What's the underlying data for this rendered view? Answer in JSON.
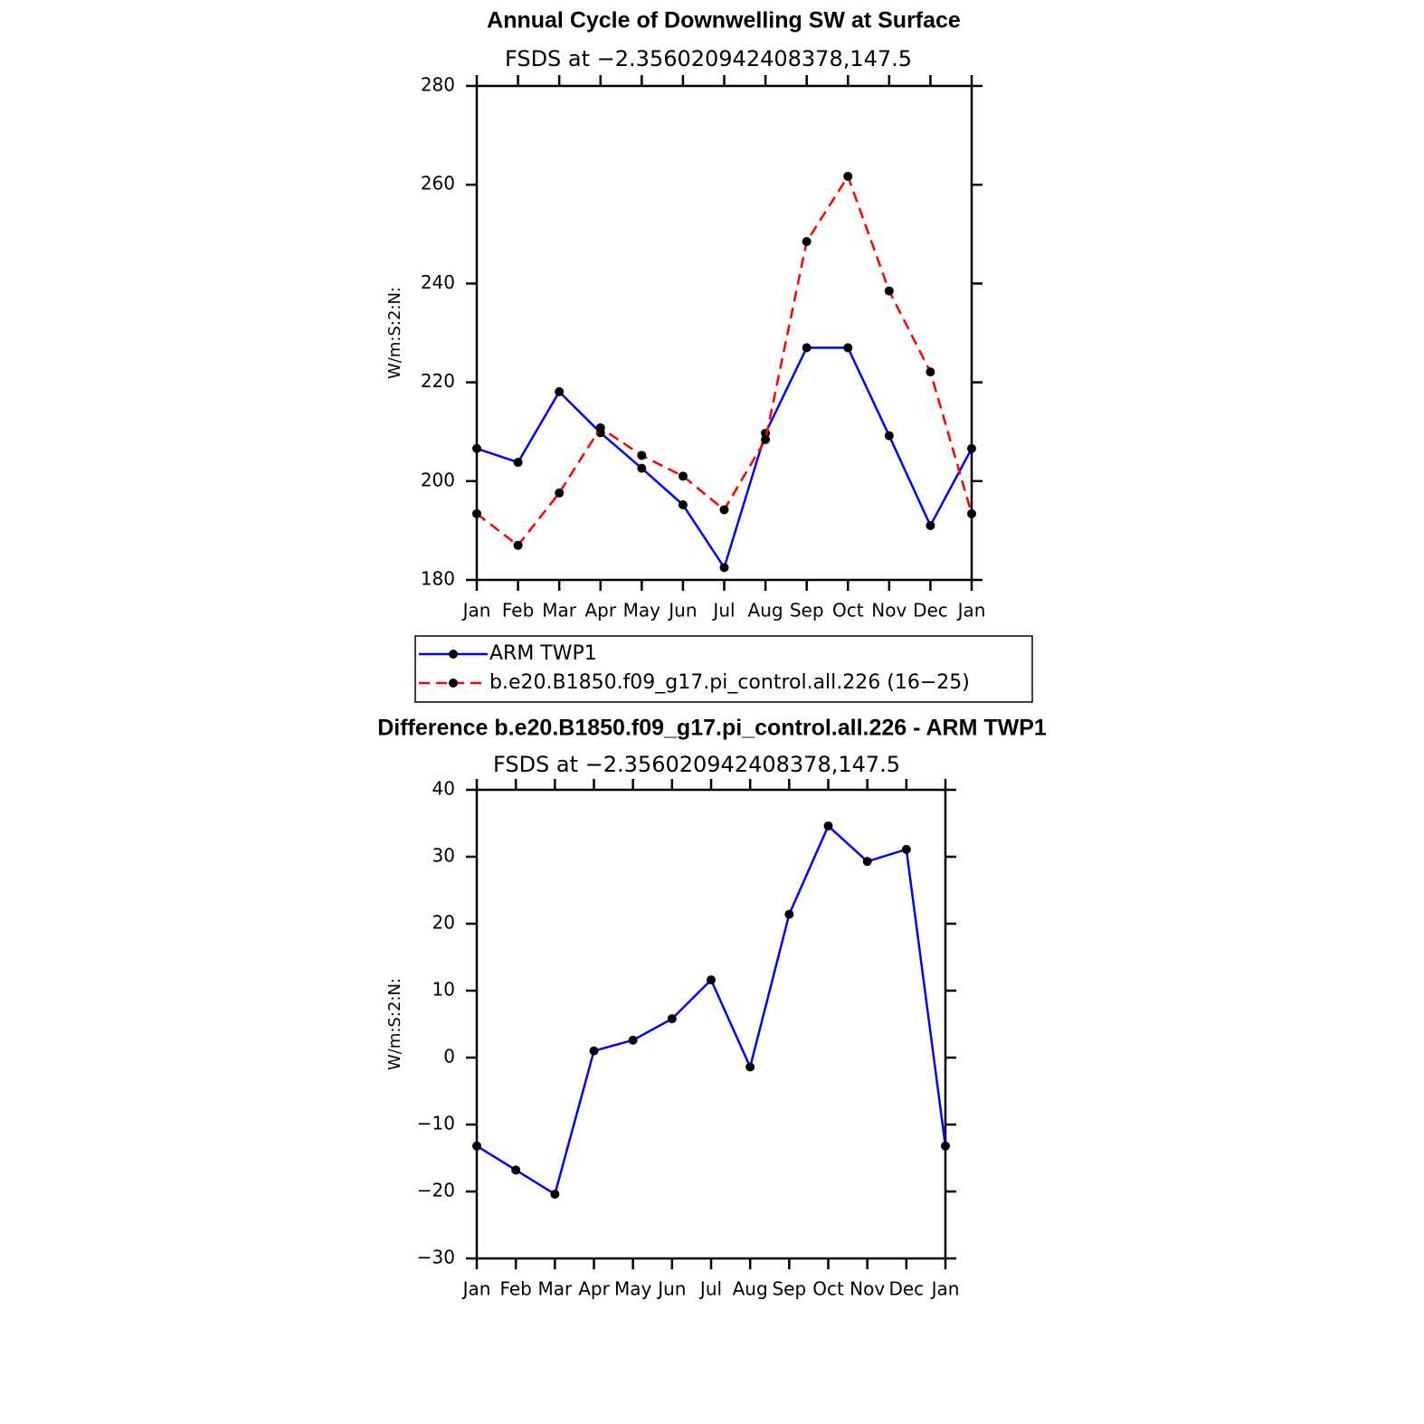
{
  "chart_data": [
    {
      "type": "line",
      "title": "Annual Cycle of Downwelling SW at Surface",
      "subtitle": "FSDS at −2.356020942408378,147.5",
      "y_label": "W/m:S:2:N:",
      "categories": [
        "Jan",
        "Feb",
        "Mar",
        "Apr",
        "May",
        "Jun",
        "Jul",
        "Aug",
        "Sep",
        "Oct",
        "Nov",
        "Dec",
        "Jan"
      ],
      "series": [
        {
          "name": "ARM TWP1",
          "color": "#0000ff",
          "line_style": "solid",
          "values": [
            206.6,
            203.8,
            218.1,
            209.8,
            202.6,
            195.2,
            182.5,
            209.7,
            227.0,
            227.0,
            209.2,
            191.0,
            206.6
          ]
        },
        {
          "name": "b.e20.B1850.f09_g17.pi_control.all.226 (16−25)",
          "color": "#ff0000",
          "line_style": "dashed",
          "values": [
            193.4,
            187.0,
            197.6,
            210.8,
            205.2,
            201.0,
            194.2,
            208.4,
            248.5,
            261.7,
            238.5,
            222.1,
            193.4
          ]
        }
      ],
      "ylim": [
        180,
        280
      ],
      "yticks": [
        180,
        200,
        220,
        240,
        260,
        280
      ],
      "legend": "bottom"
    },
    {
      "type": "line",
      "title": "Difference b.e20.B1850.f09_g17.pi_control.all.226 - ARM TWP1",
      "subtitle": "FSDS at −2.356020942408378,147.5",
      "y_label": "W/m:S:2:N:",
      "categories": [
        "Jan",
        "Feb",
        "Mar",
        "Apr",
        "May",
        "Jun",
        "Jul",
        "Aug",
        "Sep",
        "Oct",
        "Nov",
        "Dec",
        "Jan"
      ],
      "series": [
        {
          "color": "#0000ff",
          "line_style": "solid",
          "values": [
            -13.2,
            -16.8,
            -20.4,
            1.0,
            2.6,
            5.8,
            11.6,
            -1.4,
            21.4,
            34.6,
            29.3,
            31.1,
            -13.2
          ]
        }
      ],
      "ylim": [
        -30,
        40
      ],
      "yticks": [
        {
          "value": -30,
          "label": "−30"
        },
        {
          "value": -20,
          "label": "−20"
        },
        {
          "value": -10,
          "label": "−10"
        },
        0,
        10,
        20,
        30,
        40
      ]
    }
  ]
}
